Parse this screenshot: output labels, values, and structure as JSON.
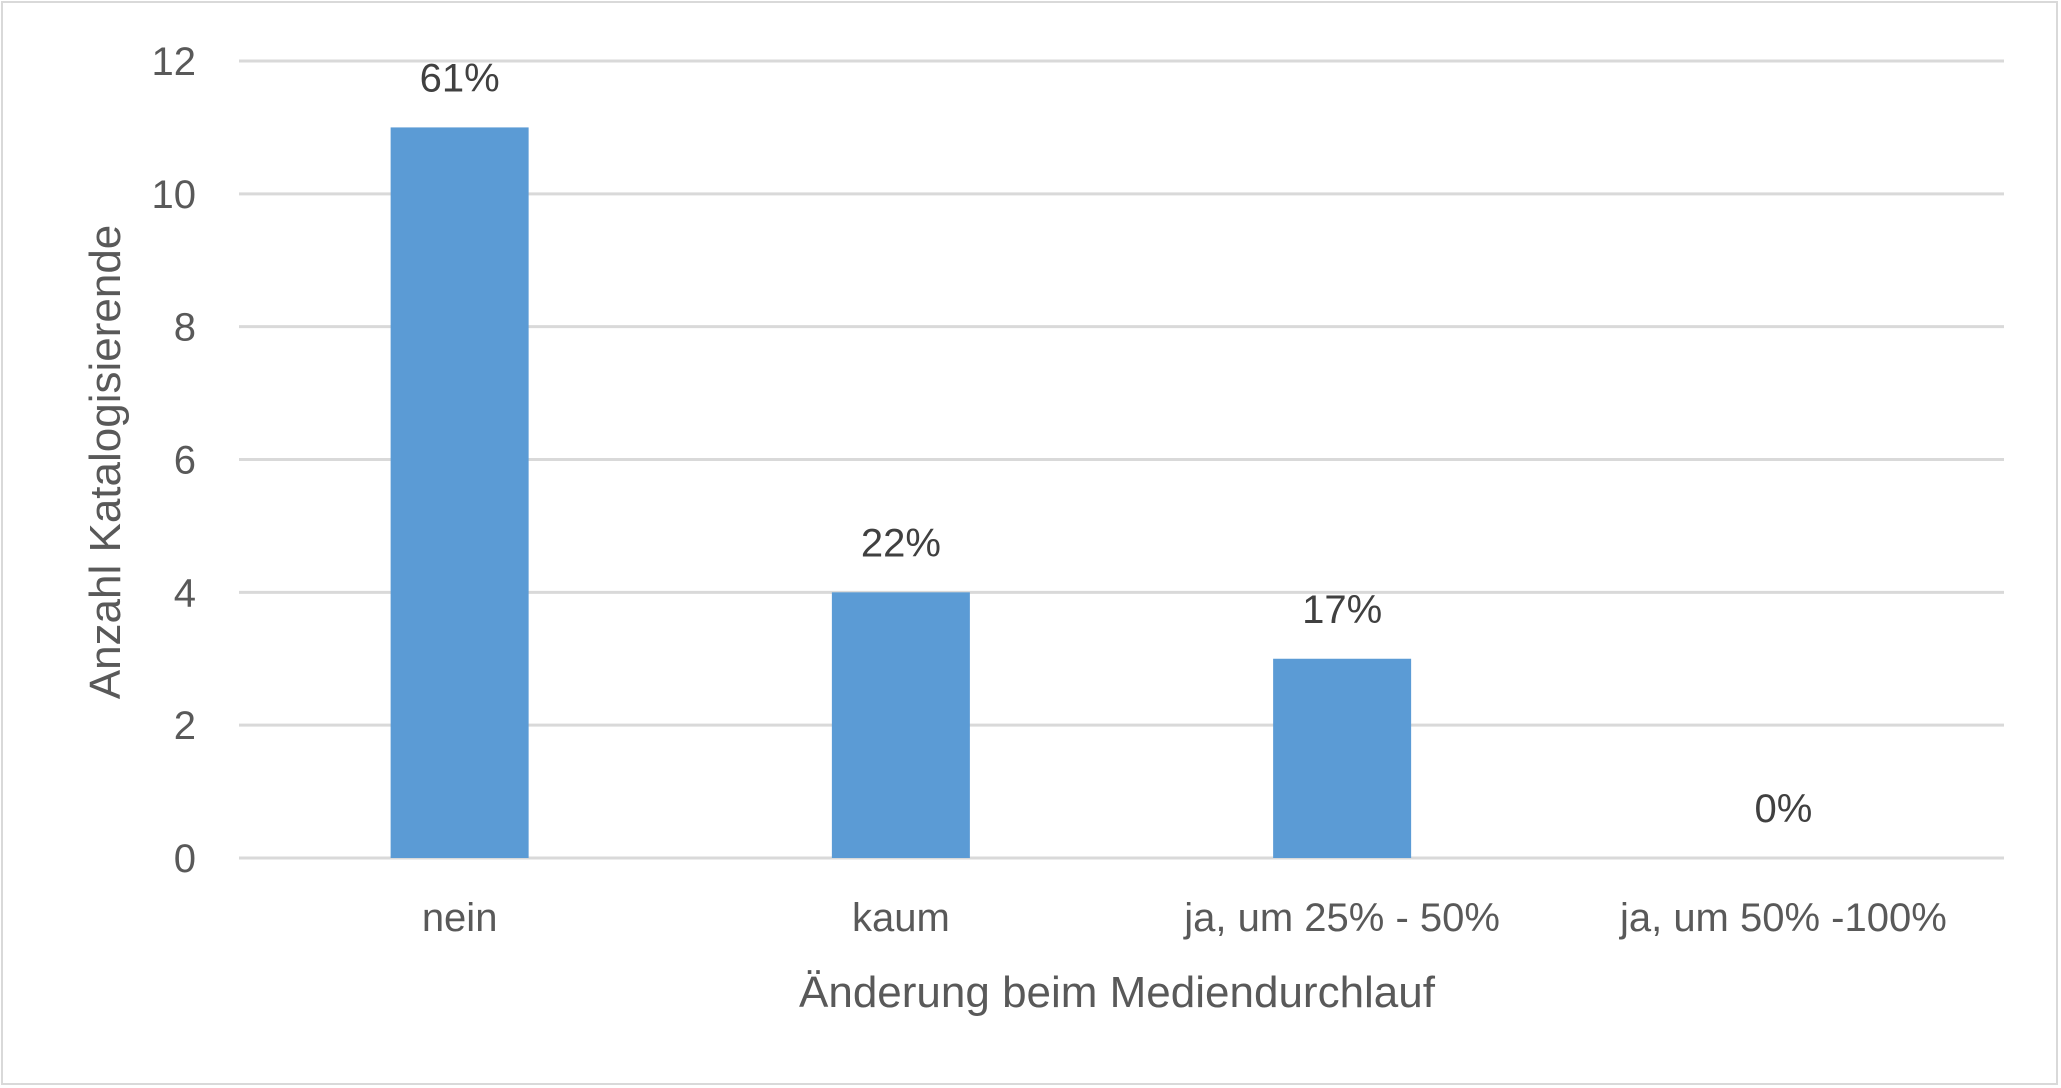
{
  "chart_data": {
    "type": "bar",
    "title": "",
    "xlabel": "Änderung beim Mediendurchlauf",
    "ylabel": "Anzahl Katalogisierende",
    "categories": [
      "nein",
      "kaum",
      "ja, um 25% - 50%",
      "ja, um 50% -100%"
    ],
    "values": [
      11,
      4,
      3,
      0
    ],
    "data_labels": [
      "61%",
      "22%",
      "17%",
      "0%"
    ],
    "ylim": [
      0,
      12
    ],
    "yticks": [
      0,
      2,
      4,
      6,
      8,
      10,
      12
    ],
    "grid": true,
    "legend": "none",
    "colors": {
      "bar": "#5b9bd5",
      "grid": "#d9d9d9",
      "tick_text": "#595959",
      "label_text": "#404040",
      "frame": "#d9d9d9"
    }
  }
}
